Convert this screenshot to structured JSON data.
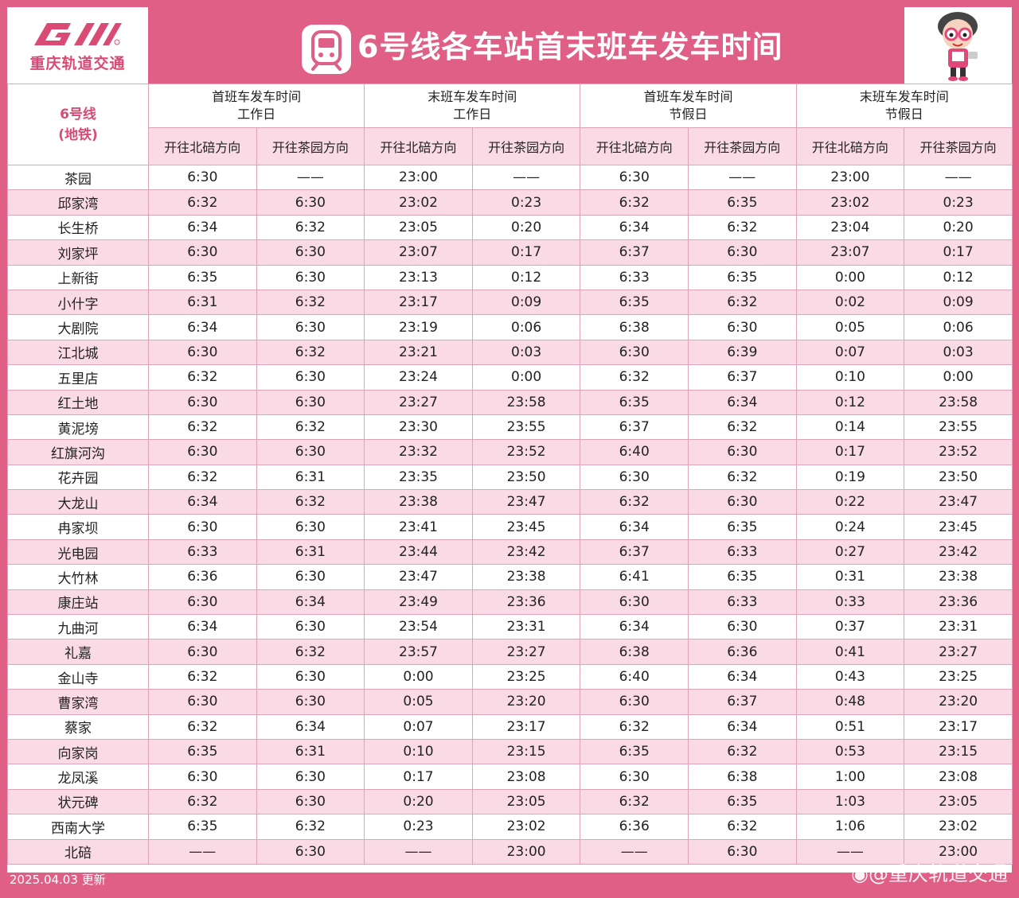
{
  "header": {
    "logo_text": "重庆轨道交通",
    "title": "6号线各车站首末班车发车时间"
  },
  "table": {
    "corner": {
      "line1": "6号线",
      "line2": "(地铁)"
    },
    "groups": [
      {
        "line1": "首班车发车时间",
        "line2": "工作日"
      },
      {
        "line1": "末班车发车时间",
        "line2": "工作日"
      },
      {
        "line1": "首班车发车时间",
        "line2": "节假日"
      },
      {
        "line1": "末班车发车时间",
        "line2": "节假日"
      }
    ],
    "directions": [
      "开往北碚方向",
      "开往茶园方向",
      "开往北碚方向",
      "开往茶园方向",
      "开往北碚方向",
      "开往茶园方向",
      "开往北碚方向",
      "开往茶园方向"
    ],
    "rows": [
      {
        "station": "茶园",
        "times": [
          "6:30",
          "——",
          "23:00",
          "——",
          "6:30",
          "——",
          "23:00",
          "——"
        ]
      },
      {
        "station": "邱家湾",
        "times": [
          "6:32",
          "6:30",
          "23:02",
          "0:23",
          "6:32",
          "6:35",
          "23:02",
          "0:23"
        ]
      },
      {
        "station": "长生桥",
        "times": [
          "6:34",
          "6:32",
          "23:05",
          "0:20",
          "6:34",
          "6:32",
          "23:04",
          "0:20"
        ]
      },
      {
        "station": "刘家坪",
        "times": [
          "6:30",
          "6:30",
          "23:07",
          "0:17",
          "6:37",
          "6:30",
          "23:07",
          "0:17"
        ]
      },
      {
        "station": "上新街",
        "times": [
          "6:35",
          "6:30",
          "23:13",
          "0:12",
          "6:33",
          "6:35",
          "0:00",
          "0:12"
        ]
      },
      {
        "station": "小什字",
        "times": [
          "6:31",
          "6:32",
          "23:17",
          "0:09",
          "6:35",
          "6:32",
          "0:02",
          "0:09"
        ]
      },
      {
        "station": "大剧院",
        "times": [
          "6:34",
          "6:30",
          "23:19",
          "0:06",
          "6:38",
          "6:30",
          "0:05",
          "0:06"
        ]
      },
      {
        "station": "江北城",
        "times": [
          "6:30",
          "6:32",
          "23:21",
          "0:03",
          "6:30",
          "6:39",
          "0:07",
          "0:03"
        ]
      },
      {
        "station": "五里店",
        "times": [
          "6:32",
          "6:30",
          "23:24",
          "0:00",
          "6:32",
          "6:37",
          "0:10",
          "0:00"
        ]
      },
      {
        "station": "红土地",
        "times": [
          "6:30",
          "6:30",
          "23:27",
          "23:58",
          "6:35",
          "6:34",
          "0:12",
          "23:58"
        ]
      },
      {
        "station": "黄泥塝",
        "times": [
          "6:32",
          "6:32",
          "23:30",
          "23:55",
          "6:37",
          "6:32",
          "0:14",
          "23:55"
        ]
      },
      {
        "station": "红旗河沟",
        "times": [
          "6:30",
          "6:30",
          "23:32",
          "23:52",
          "6:40",
          "6:30",
          "0:17",
          "23:52"
        ]
      },
      {
        "station": "花卉园",
        "times": [
          "6:32",
          "6:31",
          "23:35",
          "23:50",
          "6:30",
          "6:32",
          "0:19",
          "23:50"
        ]
      },
      {
        "station": "大龙山",
        "times": [
          "6:34",
          "6:32",
          "23:38",
          "23:47",
          "6:32",
          "6:30",
          "0:22",
          "23:47"
        ]
      },
      {
        "station": "冉家坝",
        "times": [
          "6:30",
          "6:30",
          "23:41",
          "23:45",
          "6:34",
          "6:35",
          "0:24",
          "23:45"
        ]
      },
      {
        "station": "光电园",
        "times": [
          "6:33",
          "6:31",
          "23:44",
          "23:42",
          "6:37",
          "6:33",
          "0:27",
          "23:42"
        ]
      },
      {
        "station": "大竹林",
        "times": [
          "6:36",
          "6:30",
          "23:47",
          "23:38",
          "6:41",
          "6:35",
          "0:31",
          "23:38"
        ]
      },
      {
        "station": "康庄站",
        "times": [
          "6:30",
          "6:34",
          "23:49",
          "23:36",
          "6:30",
          "6:33",
          "0:33",
          "23:36"
        ]
      },
      {
        "station": "九曲河",
        "times": [
          "6:34",
          "6:30",
          "23:54",
          "23:31",
          "6:34",
          "6:30",
          "0:37",
          "23:31"
        ]
      },
      {
        "station": "礼嘉",
        "times": [
          "6:30",
          "6:32",
          "23:57",
          "23:27",
          "6:38",
          "6:36",
          "0:41",
          "23:27"
        ]
      },
      {
        "station": "金山寺",
        "times": [
          "6:32",
          "6:30",
          "0:00",
          "23:25",
          "6:40",
          "6:34",
          "0:43",
          "23:25"
        ]
      },
      {
        "station": "曹家湾",
        "times": [
          "6:30",
          "6:30",
          "0:05",
          "23:20",
          "6:30",
          "6:37",
          "0:48",
          "23:20"
        ]
      },
      {
        "station": "蔡家",
        "times": [
          "6:32",
          "6:34",
          "0:07",
          "23:17",
          "6:32",
          "6:34",
          "0:51",
          "23:17"
        ]
      },
      {
        "station": "向家岗",
        "times": [
          "6:35",
          "6:31",
          "0:10",
          "23:15",
          "6:35",
          "6:32",
          "0:53",
          "23:15"
        ]
      },
      {
        "station": "龙凤溪",
        "times": [
          "6:30",
          "6:30",
          "0:17",
          "23:08",
          "6:30",
          "6:38",
          "1:00",
          "23:08"
        ]
      },
      {
        "station": "状元碑",
        "times": [
          "6:32",
          "6:30",
          "0:20",
          "23:05",
          "6:32",
          "6:35",
          "1:03",
          "23:05"
        ]
      },
      {
        "station": "西南大学",
        "times": [
          "6:35",
          "6:32",
          "0:23",
          "23:02",
          "6:36",
          "6:32",
          "1:06",
          "23:02"
        ]
      },
      {
        "station": "北碚",
        "times": [
          "——",
          "6:30",
          "——",
          "23:00",
          "——",
          "6:30",
          "——",
          "23:00"
        ]
      }
    ]
  },
  "footer": {
    "date": "2025.04.03 更新",
    "watermark": "@重庆轨道交通"
  },
  "colors": {
    "brand_pink": "#df5f86",
    "row_pink": "#fadbe5",
    "border": "#dca4b6"
  },
  "icons": [
    "cqrt-logo-icon",
    "metro-train-icon",
    "mascot-icon",
    "weibo-icon"
  ]
}
